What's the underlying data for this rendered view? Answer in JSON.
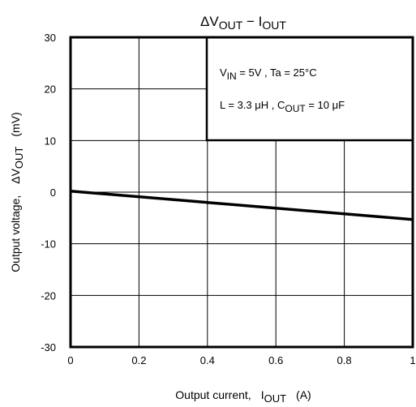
{
  "chart_data": {
    "type": "line",
    "title": {
      "delta": "Δ",
      "v": "V",
      "v_sub": "OUT",
      "dash": " − ",
      "i": "I",
      "i_sub": "OUT"
    },
    "xlabel": {
      "main": "Output current,",
      "i": "I",
      "i_sub": "OUT",
      "unit": "(A)"
    },
    "ylabel": {
      "main": "Output voltage,",
      "delta": "Δ",
      "v": "V",
      "v_sub": "OUT",
      "unit": "(mV)"
    },
    "xlim": [
      0,
      1
    ],
    "ylim": [
      -30,
      30
    ],
    "x_ticks": [
      0,
      0.2,
      0.4,
      0.6,
      0.8,
      1
    ],
    "x_tick_labels": [
      "0",
      "0.2",
      "0.4",
      "0.6",
      "0.8",
      "1"
    ],
    "y_ticks": [
      -30,
      -20,
      -10,
      0,
      10,
      20,
      30
    ],
    "y_tick_labels": [
      "-30",
      "-20",
      "-10",
      "0",
      "10",
      "20",
      "30"
    ],
    "grid": true,
    "series": [
      {
        "x": [
          0,
          1
        ],
        "y": [
          0.2,
          -5.3
        ],
        "color": "#000000"
      }
    ],
    "annotation": {
      "line1": {
        "v": "V",
        "v_sub": "IN",
        "rest": " = 5V , Ta = 25°C"
      },
      "line2": {
        "pre": "L = 3.3 μH , C",
        "c_sub": "OUT",
        "rest": " = 10 μF"
      }
    }
  }
}
